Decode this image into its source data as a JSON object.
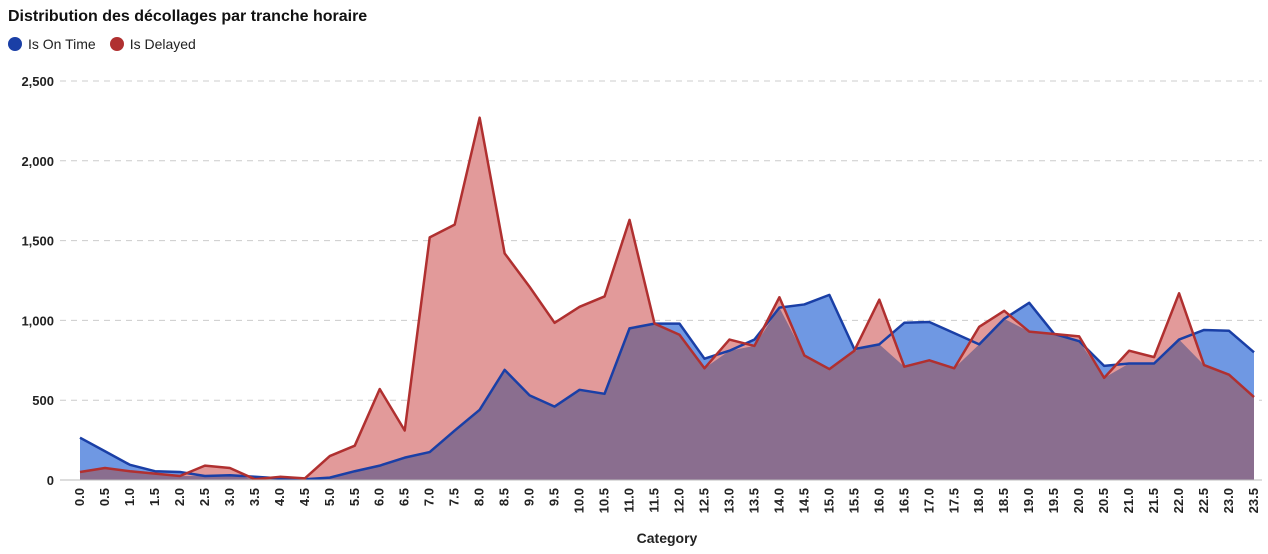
{
  "chart_data": {
    "type": "area",
    "title": "Distribution des décollages par tranche horaire",
    "xlabel": "Category",
    "ylabel": "",
    "ylim": [
      0,
      2500
    ],
    "yticks": [
      "0",
      "500",
      "1,000",
      "1,500",
      "2,000",
      "2,500"
    ],
    "ytick_values": [
      0,
      500,
      1000,
      1500,
      2000,
      2500
    ],
    "grid": true,
    "legend_position": "top-left",
    "categories": [
      "0.0",
      "0.5",
      "1.0",
      "1.5",
      "2.0",
      "2.5",
      "3.0",
      "3.5",
      "4.0",
      "4.5",
      "5.0",
      "5.5",
      "6.0",
      "6.5",
      "7.0",
      "7.5",
      "8.0",
      "8.5",
      "9.0",
      "9.5",
      "10.0",
      "10.5",
      "11.0",
      "11.5",
      "12.0",
      "12.5",
      "13.0",
      "13.5",
      "14.0",
      "14.5",
      "15.0",
      "15.5",
      "16.0",
      "16.5",
      "17.0",
      "17.5",
      "18.0",
      "18.5",
      "19.0",
      "19.5",
      "20.0",
      "20.5",
      "21.0",
      "21.5",
      "22.0",
      "22.5",
      "23.0",
      "23.5"
    ],
    "series": [
      {
        "name": "Is On Time",
        "line_color": "#1a3fa6",
        "fill_color": "#6f98e3",
        "values": [
          265,
          180,
          95,
          55,
          50,
          25,
          30,
          20,
          10,
          5,
          15,
          55,
          90,
          140,
          175,
          310,
          440,
          690,
          530,
          460,
          565,
          540,
          950,
          980,
          980,
          760,
          810,
          880,
          1080,
          1100,
          1160,
          820,
          850,
          985,
          990,
          920,
          850,
          1010,
          1110,
          915,
          870,
          715,
          730,
          730,
          880,
          940,
          935,
          800
        ]
      },
      {
        "name": "Is Delayed",
        "line_color": "#b03030",
        "fill_color": "#e29a9a",
        "values": [
          50,
          75,
          55,
          40,
          25,
          90,
          75,
          5,
          20,
          10,
          150,
          215,
          570,
          310,
          1520,
          1600,
          2270,
          1420,
          1210,
          985,
          1085,
          1150,
          1630,
          980,
          910,
          700,
          880,
          840,
          1145,
          780,
          695,
          810,
          1130,
          710,
          750,
          700,
          960,
          1060,
          930,
          915,
          900,
          640,
          810,
          770,
          1170,
          720,
          660,
          520
        ]
      }
    ],
    "overlap_color": "#8a6e8f"
  }
}
